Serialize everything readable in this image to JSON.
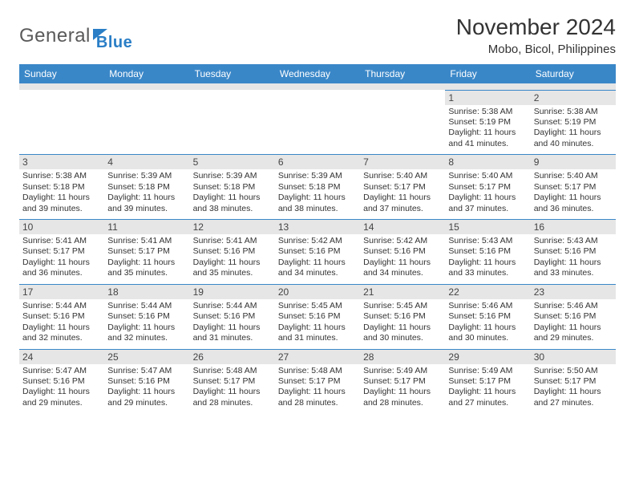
{
  "logo": {
    "part1": "General",
    "part2": "Blue"
  },
  "title": "November 2024",
  "location": "Mobo, Bicol, Philippines",
  "colors": {
    "header_bg": "#3a87c8",
    "header_fg": "#ffffff",
    "daynum_bg": "#e6e6e6",
    "border": "#3a87c8",
    "text": "#333333",
    "logo_gray": "#5a5a5a",
    "logo_blue": "#2a7ec6"
  },
  "daysOfWeek": [
    "Sunday",
    "Monday",
    "Tuesday",
    "Wednesday",
    "Thursday",
    "Friday",
    "Saturday"
  ],
  "weeks": [
    [
      null,
      null,
      null,
      null,
      null,
      {
        "n": "1",
        "sr": "5:38 AM",
        "ss": "5:19 PM",
        "dl": "11 hours and 41 minutes."
      },
      {
        "n": "2",
        "sr": "5:38 AM",
        "ss": "5:19 PM",
        "dl": "11 hours and 40 minutes."
      }
    ],
    [
      {
        "n": "3",
        "sr": "5:38 AM",
        "ss": "5:18 PM",
        "dl": "11 hours and 39 minutes."
      },
      {
        "n": "4",
        "sr": "5:39 AM",
        "ss": "5:18 PM",
        "dl": "11 hours and 39 minutes."
      },
      {
        "n": "5",
        "sr": "5:39 AM",
        "ss": "5:18 PM",
        "dl": "11 hours and 38 minutes."
      },
      {
        "n": "6",
        "sr": "5:39 AM",
        "ss": "5:18 PM",
        "dl": "11 hours and 38 minutes."
      },
      {
        "n": "7",
        "sr": "5:40 AM",
        "ss": "5:17 PM",
        "dl": "11 hours and 37 minutes."
      },
      {
        "n": "8",
        "sr": "5:40 AM",
        "ss": "5:17 PM",
        "dl": "11 hours and 37 minutes."
      },
      {
        "n": "9",
        "sr": "5:40 AM",
        "ss": "5:17 PM",
        "dl": "11 hours and 36 minutes."
      }
    ],
    [
      {
        "n": "10",
        "sr": "5:41 AM",
        "ss": "5:17 PM",
        "dl": "11 hours and 36 minutes."
      },
      {
        "n": "11",
        "sr": "5:41 AM",
        "ss": "5:17 PM",
        "dl": "11 hours and 35 minutes."
      },
      {
        "n": "12",
        "sr": "5:41 AM",
        "ss": "5:16 PM",
        "dl": "11 hours and 35 minutes."
      },
      {
        "n": "13",
        "sr": "5:42 AM",
        "ss": "5:16 PM",
        "dl": "11 hours and 34 minutes."
      },
      {
        "n": "14",
        "sr": "5:42 AM",
        "ss": "5:16 PM",
        "dl": "11 hours and 34 minutes."
      },
      {
        "n": "15",
        "sr": "5:43 AM",
        "ss": "5:16 PM",
        "dl": "11 hours and 33 minutes."
      },
      {
        "n": "16",
        "sr": "5:43 AM",
        "ss": "5:16 PM",
        "dl": "11 hours and 33 minutes."
      }
    ],
    [
      {
        "n": "17",
        "sr": "5:44 AM",
        "ss": "5:16 PM",
        "dl": "11 hours and 32 minutes."
      },
      {
        "n": "18",
        "sr": "5:44 AM",
        "ss": "5:16 PM",
        "dl": "11 hours and 32 minutes."
      },
      {
        "n": "19",
        "sr": "5:44 AM",
        "ss": "5:16 PM",
        "dl": "11 hours and 31 minutes."
      },
      {
        "n": "20",
        "sr": "5:45 AM",
        "ss": "5:16 PM",
        "dl": "11 hours and 31 minutes."
      },
      {
        "n": "21",
        "sr": "5:45 AM",
        "ss": "5:16 PM",
        "dl": "11 hours and 30 minutes."
      },
      {
        "n": "22",
        "sr": "5:46 AM",
        "ss": "5:16 PM",
        "dl": "11 hours and 30 minutes."
      },
      {
        "n": "23",
        "sr": "5:46 AM",
        "ss": "5:16 PM",
        "dl": "11 hours and 29 minutes."
      }
    ],
    [
      {
        "n": "24",
        "sr": "5:47 AM",
        "ss": "5:16 PM",
        "dl": "11 hours and 29 minutes."
      },
      {
        "n": "25",
        "sr": "5:47 AM",
        "ss": "5:16 PM",
        "dl": "11 hours and 29 minutes."
      },
      {
        "n": "26",
        "sr": "5:48 AM",
        "ss": "5:17 PM",
        "dl": "11 hours and 28 minutes."
      },
      {
        "n": "27",
        "sr": "5:48 AM",
        "ss": "5:17 PM",
        "dl": "11 hours and 28 minutes."
      },
      {
        "n": "28",
        "sr": "5:49 AM",
        "ss": "5:17 PM",
        "dl": "11 hours and 28 minutes."
      },
      {
        "n": "29",
        "sr": "5:49 AM",
        "ss": "5:17 PM",
        "dl": "11 hours and 27 minutes."
      },
      {
        "n": "30",
        "sr": "5:50 AM",
        "ss": "5:17 PM",
        "dl": "11 hours and 27 minutes."
      }
    ]
  ],
  "labels": {
    "sunrise": "Sunrise: ",
    "sunset": "Sunset: ",
    "daylight": "Daylight: "
  }
}
